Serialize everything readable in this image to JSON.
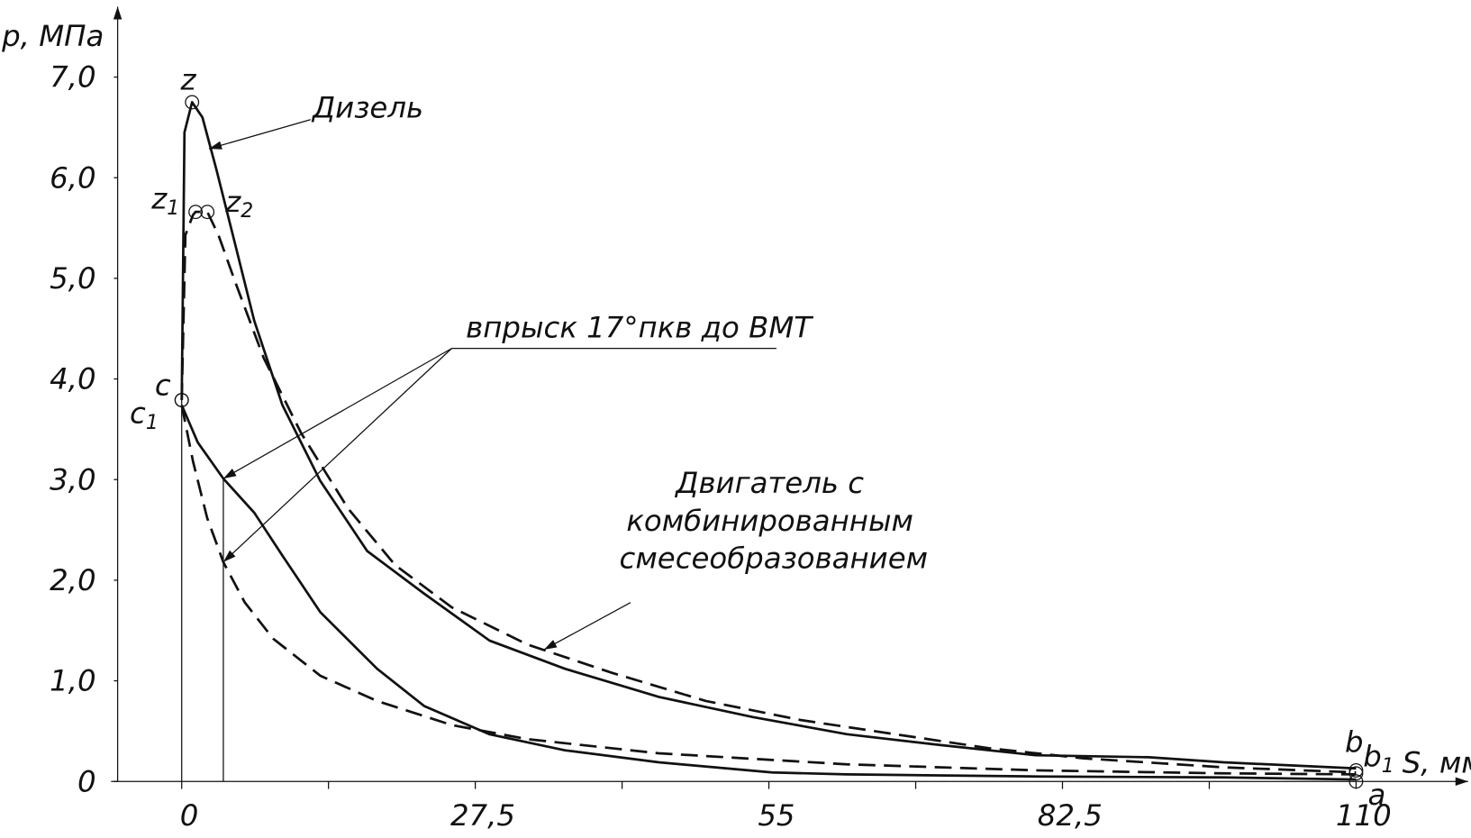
{
  "chart_data": {
    "type": "line",
    "y_label": "p, МПа",
    "x_label": "S, мм",
    "xlim": [
      -6,
      120.5
    ],
    "ylim": [
      0,
      7.7
    ],
    "xticks": [
      0,
      {
        "value": 27.5,
        "label": "27,5"
      },
      55,
      {
        "value": 82.5,
        "label": "82,5"
      },
      110
    ],
    "xminorticks": [
      13.75,
      41.25,
      68.75,
      96.25
    ],
    "yticks": [
      0,
      {
        "value": 1,
        "label": "1,0"
      },
      {
        "value": 2,
        "label": "2,0"
      },
      {
        "value": 3,
        "label": "3,0"
      },
      {
        "value": 4,
        "label": "4,0"
      },
      {
        "value": 5,
        "label": "5,0"
      },
      {
        "value": 6,
        "label": "6,0"
      },
      {
        "value": 7,
        "label": "7,0"
      }
    ],
    "series": [
      {
        "color": "#111",
        "dashed": false,
        "x": [
          0,
          0.26,
          0.97,
          1.94,
          3.26,
          5.03,
          6.79,
          9.44,
          12.96,
          17.37,
          22.66,
          28.84,
          35.9,
          44.7,
          53.5,
          62.3,
          71.2,
          80,
          90.6,
          97.6,
          110
        ],
        "values": [
          3.79,
          6.45,
          6.75,
          6.6,
          6.08,
          5.33,
          4.58,
          3.74,
          2.99,
          2.29,
          1.87,
          1.4,
          1.12,
          0.84,
          0.64,
          0.47,
          0.36,
          0.26,
          0.24,
          0.19,
          0.13
        ]
      },
      {
        "color": "#111",
        "dashed": false,
        "x": [
          0,
          1.5,
          3.9,
          6.8,
          9.4,
          13,
          18.3,
          22.7,
          28.8,
          35.9,
          44.7,
          55.3,
          62.3,
          80,
          97.6,
          110
        ],
        "values": [
          3.74,
          3.37,
          3.01,
          2.67,
          2.25,
          1.68,
          1.12,
          0.75,
          0.47,
          0.31,
          0.19,
          0.09,
          0.07,
          0.05,
          0.04,
          0.02
        ]
      },
      {
        "color": "#111",
        "dashed": true,
        "x": [
          0,
          0.35,
          1.06,
          1.3,
          2.4,
          3.44,
          5.03,
          7.67,
          11.2,
          15.6,
          20,
          25.3,
          32.4,
          40.3,
          49.1,
          58,
          66.8,
          75.6,
          84.4,
          97.6,
          110
        ],
        "values": [
          3.79,
          5.43,
          5.63,
          5.66,
          5.66,
          5.43,
          4.96,
          4.21,
          3.46,
          2.71,
          2.15,
          1.73,
          1.36,
          1.08,
          0.8,
          0.61,
          0.47,
          0.33,
          0.23,
          0.14,
          0.09
        ]
      },
      {
        "color": "#111",
        "dashed": true,
        "x": [
          0,
          1.06,
          2.38,
          3.9,
          5.9,
          8.55,
          13,
          18.3,
          25.3,
          32.4,
          44.7,
          62.3,
          80,
          97.6,
          110
        ],
        "values": [
          3.74,
          3.18,
          2.62,
          2.18,
          1.78,
          1.42,
          1.05,
          0.8,
          0.56,
          0.42,
          0.28,
          0.17,
          0.11,
          0.08,
          0.07
        ]
      }
    ],
    "points": [
      {
        "label": "z",
        "x": 0.97,
        "y": 6.75
      },
      {
        "label": "z",
        "sub": "1",
        "x": 1.3,
        "y": 5.66
      },
      {
        "label": "z",
        "sub": "2",
        "x": 2.4,
        "y": 5.66
      },
      {
        "label": "c",
        "x": 0,
        "y": 3.79
      },
      {
        "label": "c",
        "sub": "1",
        "x": 0,
        "y": 3.79
      },
      {
        "label": "b",
        "x": 110,
        "y": 0.11
      },
      {
        "label": "b",
        "sub": "1",
        "x": 110,
        "y": 0.08
      },
      {
        "label": "a",
        "x": 110,
        "y": 0
      }
    ],
    "injection": {
      "label": "впрыск 17°пкв до ВМТ",
      "x": 3.9,
      "p": [
        3.01,
        2.18
      ]
    },
    "annotations": {
      "diesel": "Дизель",
      "combined": [
        "Двигатель с",
        "комбинированным",
        "смесеобразованием"
      ]
    }
  }
}
